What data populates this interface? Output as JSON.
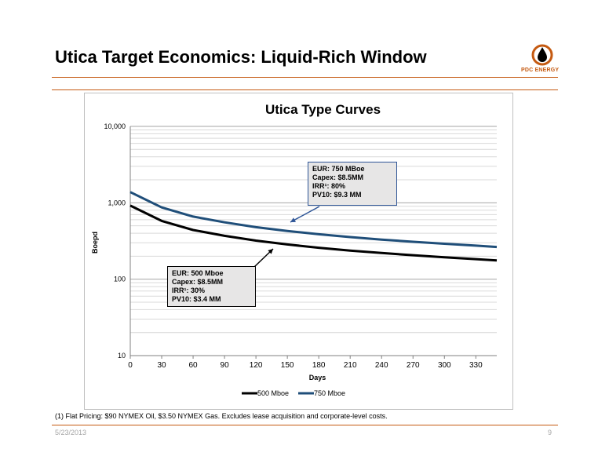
{
  "slide": {
    "title": "Utica Target Economics: Liquid-Rich Window",
    "logo_text": "PDC ENERGY",
    "footnote": "(1) Flat Pricing: $90 NYMEX Oil, $3.50 NYMEX Gas. Excludes lease acquisition and corporate-level costs.",
    "date": "5/23/2013",
    "page": "9"
  },
  "colors": {
    "accent": "#c55a11",
    "series_500": "#000000",
    "series_750": "#1f4e79"
  },
  "callouts": {
    "c750": {
      "line1": "EUR: 750 MBoe",
      "line2": "Capex: $8.5MM",
      "line3": "IRR¹: 80%",
      "line4": "PV10: $9.3 MM"
    },
    "c500": {
      "line1": "EUR: 500 Mboe",
      "line2": "Capex: $8.5MM",
      "line3": "IRR¹: 30%",
      "line4": "PV10: $3.4 MM"
    }
  },
  "chart_data": {
    "type": "line",
    "title": "Utica Type Curves",
    "xlabel": "Days",
    "ylabel": "Boepd",
    "y_scale": "log",
    "xlim": [
      0,
      350
    ],
    "ylim": [
      10,
      10000
    ],
    "x_ticks": [
      "0",
      "30",
      "60",
      "90",
      "120",
      "150",
      "180",
      "210",
      "240",
      "270",
      "300",
      "330"
    ],
    "y_ticks": [
      "10",
      "100",
      "1,000",
      "10,000"
    ],
    "legend_position": "bottom",
    "grid": true,
    "x": [
      0,
      30,
      60,
      90,
      120,
      150,
      180,
      210,
      240,
      270,
      300,
      330,
      350
    ],
    "series": [
      {
        "name": "500 Mboe",
        "values": [
          920,
          580,
          440,
          370,
          320,
          285,
          258,
          237,
          220,
          206,
          194,
          183,
          176
        ]
      },
      {
        "name": "750 Mboe",
        "values": [
          1380,
          870,
          660,
          555,
          480,
          428,
          388,
          356,
          330,
          309,
          291,
          275,
          264
        ]
      }
    ]
  }
}
